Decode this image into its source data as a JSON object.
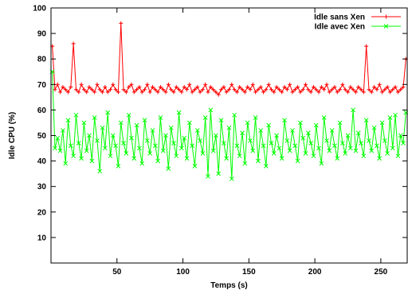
{
  "chart_data": {
    "type": "line",
    "title": "",
    "xlabel": "Temps (s)",
    "ylabel": "Idle CPU (%)",
    "xlim": [
      0,
      270
    ],
    "ylim": [
      0,
      100
    ],
    "xticks": [
      50,
      100,
      150,
      200,
      250
    ],
    "yticks": [
      10,
      20,
      30,
      40,
      50,
      60,
      70,
      80,
      90,
      100
    ],
    "grid": false,
    "legend_position": "top-right",
    "series": [
      {
        "name": "Idle sans Xen",
        "color": "#ff0000",
        "marker": "plus",
        "x": [
          1,
          3,
          5,
          7,
          9,
          11,
          13,
          15,
          17,
          19,
          21,
          23,
          25,
          27,
          29,
          31,
          33,
          35,
          37,
          39,
          41,
          43,
          45,
          47,
          49,
          51,
          53,
          55,
          57,
          59,
          61,
          63,
          65,
          67,
          69,
          71,
          73,
          75,
          77,
          79,
          81,
          83,
          85,
          87,
          89,
          91,
          93,
          95,
          97,
          99,
          101,
          103,
          105,
          107,
          109,
          111,
          113,
          115,
          117,
          119,
          121,
          123,
          125,
          127,
          129,
          131,
          133,
          135,
          137,
          139,
          141,
          143,
          145,
          147,
          149,
          151,
          153,
          155,
          157,
          159,
          161,
          163,
          165,
          167,
          169,
          171,
          173,
          175,
          177,
          179,
          181,
          183,
          185,
          187,
          189,
          191,
          193,
          195,
          197,
          199,
          201,
          203,
          205,
          207,
          209,
          211,
          213,
          215,
          217,
          219,
          221,
          223,
          225,
          227,
          229,
          231,
          233,
          235,
          237,
          239,
          241,
          243,
          245,
          247,
          249,
          251,
          253,
          255,
          257,
          259,
          261,
          263,
          265,
          267,
          269
        ],
        "y": [
          85,
          68,
          70,
          67,
          69,
          68,
          67,
          69,
          86,
          68,
          67,
          70,
          68,
          67,
          69,
          68,
          67,
          70,
          68,
          67,
          69,
          67,
          68,
          70,
          68,
          67,
          94,
          68,
          67,
          69,
          70,
          67,
          68,
          69,
          67,
          68,
          70,
          67,
          69,
          68,
          67,
          69,
          68,
          67,
          70,
          68,
          67,
          69,
          68,
          67,
          69,
          68,
          70,
          67,
          68,
          69,
          67,
          68,
          70,
          67,
          69,
          68,
          67,
          66,
          68,
          69,
          67,
          68,
          70,
          68,
          67,
          69,
          68,
          67,
          69,
          68,
          70,
          67,
          68,
          69,
          67,
          68,
          70,
          68,
          67,
          69,
          68,
          67,
          69,
          68,
          70,
          67,
          68,
          69,
          67,
          68,
          70,
          68,
          67,
          69,
          68,
          67,
          69,
          68,
          70,
          67,
          68,
          69,
          67,
          68,
          70,
          68,
          67,
          69,
          68,
          67,
          69,
          68,
          67,
          85,
          68,
          67,
          69,
          68,
          70,
          67,
          68,
          69,
          67,
          68,
          69,
          67,
          68,
          69,
          80
        ]
      },
      {
        "name": "Idle avec Xen",
        "color": "#00ff00",
        "marker": "x",
        "x": [
          1,
          3,
          5,
          7,
          9,
          11,
          13,
          15,
          17,
          19,
          21,
          23,
          25,
          27,
          29,
          31,
          33,
          35,
          37,
          39,
          41,
          43,
          45,
          47,
          49,
          51,
          53,
          55,
          57,
          59,
          61,
          63,
          65,
          67,
          69,
          71,
          73,
          75,
          77,
          79,
          81,
          83,
          85,
          87,
          89,
          91,
          93,
          95,
          97,
          99,
          101,
          103,
          105,
          107,
          109,
          111,
          113,
          115,
          117,
          119,
          121,
          123,
          125,
          127,
          129,
          131,
          133,
          135,
          137,
          139,
          141,
          143,
          145,
          147,
          149,
          151,
          153,
          155,
          157,
          159,
          161,
          163,
          165,
          167,
          169,
          171,
          173,
          175,
          177,
          179,
          181,
          183,
          185,
          187,
          189,
          191,
          193,
          195,
          197,
          199,
          201,
          203,
          205,
          207,
          209,
          211,
          213,
          215,
          217,
          219,
          221,
          223,
          225,
          227,
          229,
          231,
          233,
          235,
          237,
          239,
          241,
          243,
          245,
          247,
          249,
          251,
          253,
          255,
          257,
          259,
          261,
          263,
          265,
          267,
          269
        ],
        "y": [
          75,
          45,
          49,
          44,
          52,
          39,
          56,
          46,
          42,
          58,
          47,
          41,
          55,
          44,
          50,
          40,
          57,
          48,
          36,
          53,
          45,
          59,
          42,
          50,
          46,
          38,
          55,
          47,
          43,
          58,
          49,
          41,
          54,
          45,
          39,
          56,
          48,
          43,
          52,
          46,
          40,
          57,
          44,
          50,
          37,
          53,
          47,
          42,
          59,
          45,
          49,
          41,
          55,
          46,
          38,
          52,
          48,
          43,
          57,
          34,
          60,
          44,
          50,
          35,
          56,
          47,
          41,
          53,
          33,
          58,
          46,
          42,
          51,
          39,
          55,
          48,
          44,
          57,
          40,
          52,
          46,
          38,
          54,
          47,
          43,
          50,
          45,
          41,
          56,
          48,
          44,
          52,
          46,
          40,
          55,
          49,
          43,
          51,
          47,
          42,
          54,
          45,
          39,
          57,
          48,
          44,
          52,
          46,
          41,
          55,
          47,
          43,
          50,
          45,
          60,
          44,
          51,
          47,
          42,
          56,
          48,
          44,
          53,
          46,
          41,
          55,
          48,
          43,
          57,
          45,
          58,
          42,
          50,
          47,
          59
        ]
      }
    ]
  }
}
